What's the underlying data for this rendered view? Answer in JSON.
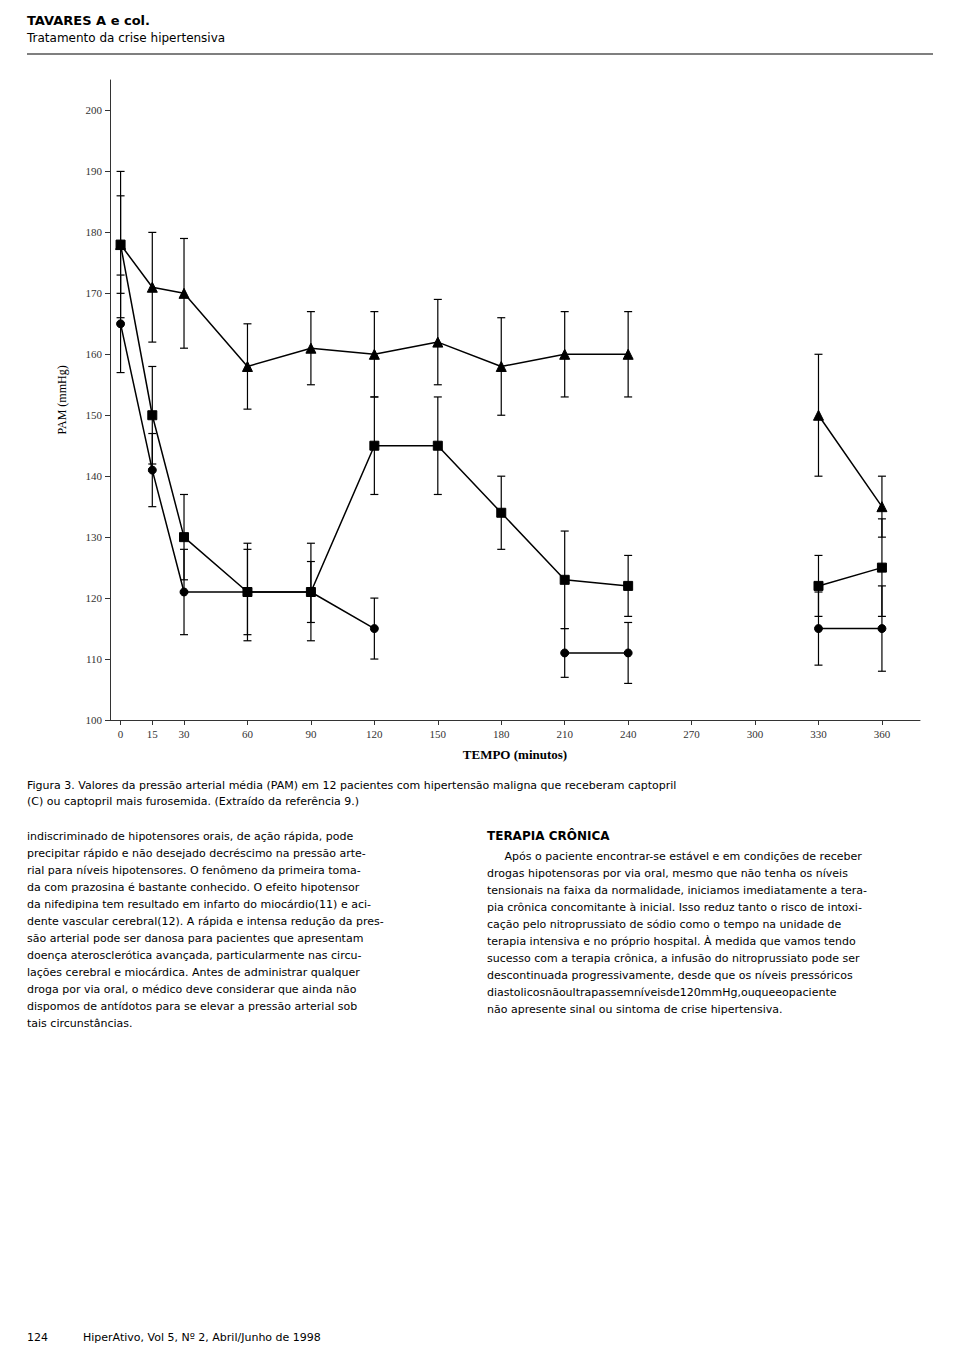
{
  "chart_data": {
    "type": "line",
    "title": "TAVARES A e col.",
    "subtitle": "Tratamento da crise hipertensiva",
    "xlabel": "TEMPO (minutos)",
    "ylabel": "PAM (mmHg)",
    "x": [
      0,
      15,
      30,
      60,
      90,
      120,
      150,
      180,
      210,
      240,
      270,
      300,
      330,
      360
    ],
    "xlim": [
      -5,
      378
    ],
    "xticks": [
      0,
      15,
      30,
      60,
      90,
      120,
      150,
      180,
      210,
      240,
      270,
      300,
      330,
      360
    ],
    "ylim": [
      100,
      205
    ],
    "yticks": [
      100,
      110,
      120,
      130,
      140,
      150,
      160,
      170,
      180,
      190,
      200
    ],
    "grid": false,
    "series": [
      {
        "marker": "triangle",
        "color": "#000000",
        "values": [
          178,
          171,
          170,
          158,
          161,
          160,
          162,
          158,
          160,
          160,
          null,
          null,
          150,
          135
        ],
        "yerr_up": [
          12,
          9,
          9,
          7,
          6,
          7,
          7,
          8,
          7,
          7,
          null,
          null,
          10,
          5
        ],
        "yerr_down": [
          12,
          9,
          9,
          7,
          6,
          7,
          7,
          8,
          7,
          7,
          null,
          null,
          10,
          5
        ]
      },
      {
        "marker": "square",
        "color": "#000000",
        "values": [
          178,
          150,
          130,
          121,
          121,
          145,
          145,
          134,
          123,
          122,
          null,
          null,
          122,
          125
        ],
        "yerr_up": [
          8,
          8,
          7,
          8,
          8,
          8,
          8,
          6,
          8,
          5,
          null,
          null,
          5,
          8
        ],
        "yerr_down": [
          8,
          8,
          7,
          8,
          8,
          8,
          8,
          6,
          8,
          5,
          null,
          null,
          5,
          8
        ]
      },
      {
        "marker": "circle",
        "color": "#000000",
        "values": [
          165,
          141,
          121,
          121,
          121,
          115,
          null,
          null,
          111,
          111,
          null,
          null,
          115,
          115
        ],
        "yerr_up": [
          8,
          6,
          7,
          7,
          5,
          5,
          null,
          null,
          4,
          5,
          null,
          null,
          6,
          7
        ],
        "yerr_down": [
          8,
          6,
          7,
          7,
          5,
          5,
          null,
          null,
          4,
          5,
          null,
          null,
          6,
          7
        ]
      }
    ],
    "annotations": [
      "Figura 3. Valores da pressão arterial média (PAM) em 12 pacientes com hipertensão maligna que receberam captopril",
      "(C) ou captopril mais furosemida. (Extraído da referência 9.)",
      "indiscriminado de hipotensores orais, de ação rápida, pode\nprecipitar rápido e não desejado decréscimo na pressão arte-\nrial para níveis hipotensores. O fenômeno da primeira toma-\nda com prazosina é bastante conhecido. O efeito hipotensor\nda nifedipina tem resultado em infarto do miocárdio(11) e aci-\ndente vascular cerebral(12). A rápida e intensa redução da pres-\nsão arterial pode ser danosa para pacientes que apresentam\ndoença aterosclerótica avançada, particularmente nas circu-\nlações cerebral e miocárdica. Antes de administrar qualquer\ndroga por via oral, o médico deve considerar que ainda não\ndispomos de antídotos para se elevar a pressão arterial sob\ntais circunstâncias.",
      "TERAPIA CRÔNICA",
      "     Após o paciente encontrar-se estável e em condições de receber\ndrogas hipotensoras por via oral, mesmo que não tenha os níveis\ntensionais na faixa da normalidade, iniciamos imediatamente a tera-\npia crônica concomitante à inicial. Isso reduz tanto o risco de intoxi-\ncação pelo nitroprussiato de sódio como o tempo na unidade de\nterapia intensiva e no próprio hospital. À medida que vamos tendo\nsucesso com a terapia crônica, a infusão do nitroprussiato pode ser\ndescontinuada progressivamente, desde que os níveis pressóricos\ndiastolicosnãoultrapassemníveisde120mmHg,ouqueeopaciente\nnão apresente sinal ou sintoma de crise hipertensiva.",
      "124          HiperAtivo, Vol 5, Nº 2, Abril/Junho de 1998"
    ]
  }
}
